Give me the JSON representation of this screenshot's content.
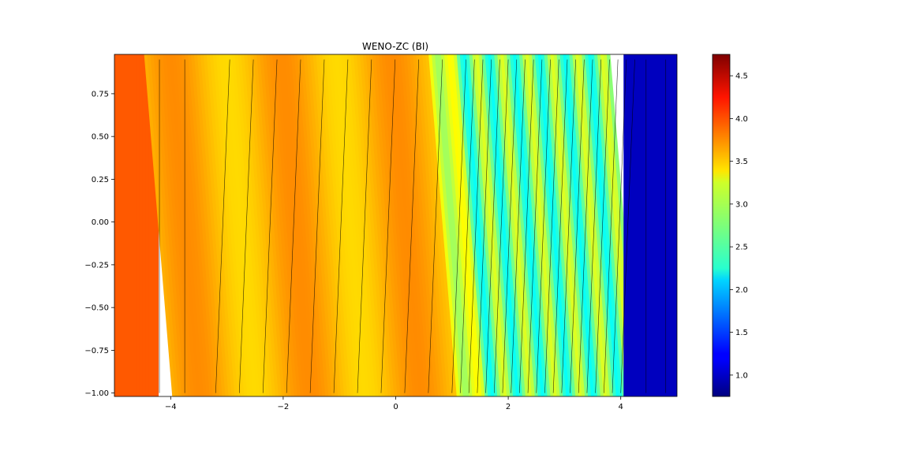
{
  "chart_data": {
    "type": "heatmap",
    "title": "WENO-ZC (BI)",
    "xlabel": "",
    "ylabel": "",
    "xlim": [
      -5,
      5
    ],
    "ylim": [
      -1.02,
      0.98
    ],
    "x_ticks": [
      -4,
      -2,
      0,
      2,
      4
    ],
    "x_tick_labels": [
      "−4",
      "−2",
      "0",
      "2",
      "4"
    ],
    "y_ticks": [
      -1.0,
      -0.75,
      -0.5,
      -0.25,
      0.0,
      0.25,
      0.5,
      0.75
    ],
    "y_tick_labels": [
      "−1.00",
      "−0.75",
      "−0.50",
      "−0.25",
      "0.00",
      "0.25",
      "0.50",
      "0.75"
    ],
    "colormap": "jet",
    "colorbar": {
      "vmin": 0.75,
      "vmax": 4.75,
      "ticks": [
        1.0,
        1.5,
        2.0,
        2.5,
        3.0,
        3.5,
        4.0,
        4.5
      ],
      "tick_labels": [
        "1.0",
        "1.5",
        "2.0",
        "2.5",
        "3.0",
        "3.5",
        "4.0",
        "4.5"
      ]
    },
    "field_description_values": {
      "left_state_value": 3.9,
      "shock_position_x": 4.05,
      "right_state_value": 1.0,
      "oscillation_band_x": [
        1.1,
        4.05
      ],
      "oscillation_band_value_range": [
        2.3,
        3.1
      ]
    },
    "contour_lines": true,
    "grid": false
  }
}
